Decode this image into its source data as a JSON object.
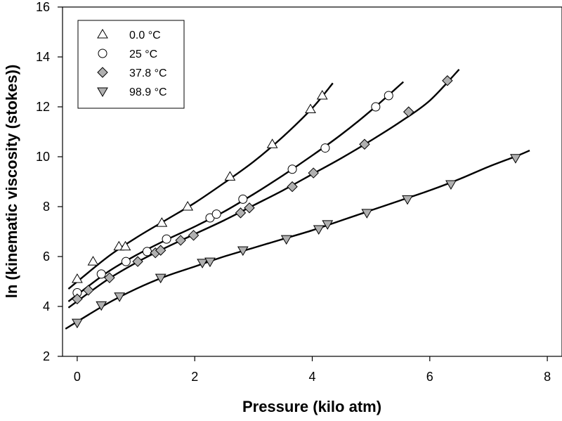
{
  "chart_data": {
    "type": "scatter",
    "title": "",
    "xlabel": "Pressure (kilo atm)",
    "ylabel": "ln (kinematic viscosity (stokes))",
    "xlim": [
      -0.25,
      8.25
    ],
    "ylim": [
      2,
      16
    ],
    "xticks": [
      0,
      2,
      4,
      6,
      8
    ],
    "yticks": [
      2,
      4,
      6,
      8,
      10,
      12,
      14,
      16
    ],
    "grid": false,
    "legend_position": "top-left",
    "series": [
      {
        "name": "0.0 °C",
        "marker": "triangle-up",
        "marker_color": "#ffffff",
        "points": [
          [
            0.0,
            5.1
          ],
          [
            0.27,
            5.8
          ],
          [
            0.71,
            6.4
          ],
          [
            0.82,
            6.4
          ],
          [
            1.44,
            7.35
          ],
          [
            1.88,
            8.0
          ],
          [
            2.6,
            9.2
          ],
          [
            3.32,
            10.5
          ],
          [
            3.97,
            11.9
          ],
          [
            4.17,
            12.45
          ]
        ],
        "fit": [
          [
            -0.15,
            4.7
          ],
          [
            0.5,
            5.95
          ],
          [
            1.0,
            6.75
          ],
          [
            1.5,
            7.45
          ],
          [
            2.0,
            8.15
          ],
          [
            2.5,
            8.95
          ],
          [
            3.0,
            9.8
          ],
          [
            3.5,
            10.8
          ],
          [
            4.0,
            11.95
          ],
          [
            4.35,
            12.95
          ]
        ]
      },
      {
        "name": "25 °C",
        "marker": "circle",
        "marker_color": "#ffffff",
        "points": [
          [
            0.0,
            4.55
          ],
          [
            0.41,
            5.3
          ],
          [
            0.83,
            5.8
          ],
          [
            1.19,
            6.2
          ],
          [
            1.52,
            6.7
          ],
          [
            2.26,
            7.55
          ],
          [
            2.37,
            7.7
          ],
          [
            2.82,
            8.3
          ],
          [
            3.66,
            9.5
          ],
          [
            4.22,
            10.35
          ],
          [
            5.08,
            12.0
          ],
          [
            5.3,
            12.45
          ]
        ],
        "fit": [
          [
            -0.15,
            4.2
          ],
          [
            0.5,
            5.35
          ],
          [
            1.0,
            6.05
          ],
          [
            1.5,
            6.65
          ],
          [
            2.0,
            7.2
          ],
          [
            2.5,
            7.8
          ],
          [
            3.0,
            8.5
          ],
          [
            3.5,
            9.25
          ],
          [
            4.0,
            10.05
          ],
          [
            4.5,
            10.9
          ],
          [
            5.0,
            11.85
          ],
          [
            5.55,
            13.0
          ]
        ]
      },
      {
        "name": "37.8 °C",
        "marker": "diamond",
        "marker_color": "#b0b0b0",
        "points": [
          [
            0.0,
            4.3
          ],
          [
            0.19,
            4.65
          ],
          [
            0.55,
            5.15
          ],
          [
            1.03,
            5.8
          ],
          [
            1.33,
            6.15
          ],
          [
            1.42,
            6.25
          ],
          [
            1.76,
            6.65
          ],
          [
            1.98,
            6.85
          ],
          [
            2.78,
            7.75
          ],
          [
            2.93,
            7.95
          ],
          [
            3.66,
            8.8
          ],
          [
            4.02,
            9.35
          ],
          [
            4.89,
            10.5
          ],
          [
            5.64,
            11.8
          ],
          [
            6.3,
            13.05
          ]
        ],
        "fit": [
          [
            -0.15,
            3.95
          ],
          [
            0.5,
            5.05
          ],
          [
            1.0,
            5.75
          ],
          [
            1.5,
            6.35
          ],
          [
            2.0,
            6.9
          ],
          [
            2.5,
            7.45
          ],
          [
            3.0,
            8.05
          ],
          [
            3.5,
            8.65
          ],
          [
            4.0,
            9.3
          ],
          [
            4.5,
            9.95
          ],
          [
            5.0,
            10.65
          ],
          [
            5.5,
            11.4
          ],
          [
            6.0,
            12.25
          ],
          [
            6.5,
            13.5
          ]
        ]
      },
      {
        "name": "98.9 °C",
        "marker": "triangle-down",
        "marker_color": "#b0b0b0",
        "points": [
          [
            0.0,
            3.35
          ],
          [
            0.41,
            4.05
          ],
          [
            0.72,
            4.4
          ],
          [
            1.42,
            5.15
          ],
          [
            2.13,
            5.75
          ],
          [
            2.26,
            5.8
          ],
          [
            2.82,
            6.25
          ],
          [
            3.56,
            6.7
          ],
          [
            4.11,
            7.1
          ],
          [
            4.26,
            7.3
          ],
          [
            4.93,
            7.75
          ],
          [
            5.62,
            8.3
          ],
          [
            6.36,
            8.9
          ],
          [
            7.46,
            9.95
          ]
        ],
        "fit": [
          [
            -0.2,
            3.1
          ],
          [
            0.5,
            4.1
          ],
          [
            1.0,
            4.7
          ],
          [
            1.5,
            5.2
          ],
          [
            2.0,
            5.6
          ],
          [
            2.5,
            6.0
          ],
          [
            3.0,
            6.35
          ],
          [
            3.5,
            6.7
          ],
          [
            4.0,
            7.05
          ],
          [
            4.5,
            7.45
          ],
          [
            5.0,
            7.85
          ],
          [
            5.5,
            8.25
          ],
          [
            6.0,
            8.65
          ],
          [
            6.5,
            9.1
          ],
          [
            7.0,
            9.6
          ],
          [
            7.5,
            10.05
          ],
          [
            7.7,
            10.25
          ]
        ]
      }
    ]
  }
}
